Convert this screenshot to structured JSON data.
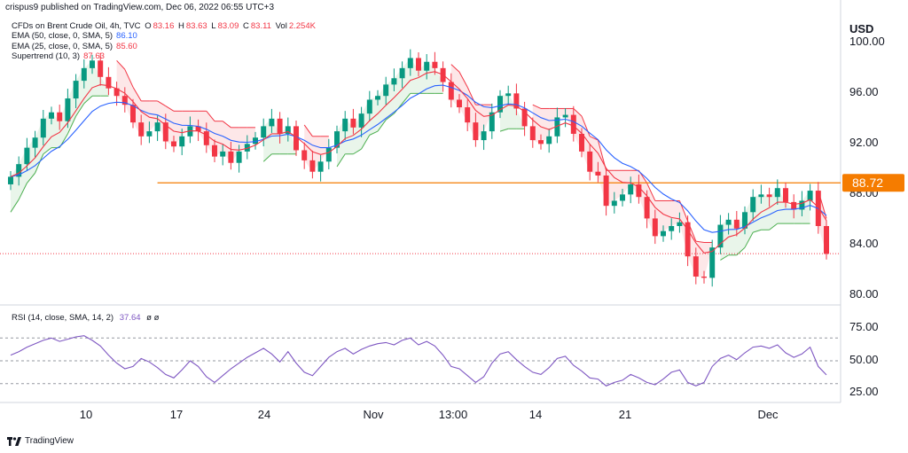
{
  "header": {
    "publisher": "crispus9 published on TradingView.com, Dec 06, 2022 06:55 UTC+3"
  },
  "legend": {
    "symbol": "CFDs on Brent Crude Oil, 4h, TVC",
    "ohlc": {
      "o_label": "O",
      "o": "83.16",
      "h_label": "H",
      "h": "83.63",
      "l_label": "L",
      "l": "83.09",
      "c_label": "C",
      "c": "83.11",
      "vol_label": "Vol",
      "vol": "2.254K"
    },
    "ema50_label": "EMA (50, close, 0, SMA, 5)",
    "ema50_value": "86.10",
    "ema25_label": "EMA (25, close, 0, SMA, 5)",
    "ema25_value": "85.60",
    "supertrend_label": "Supertrend (10, 3)",
    "supertrend_value": "87.63"
  },
  "rsi_legend": {
    "label": "RSI (14, close, SMA, 14, 2)",
    "value": "37.64",
    "extra": "ø ø"
  },
  "currency": "USD",
  "price_axis_labels": [
    "100.00",
    "96.00",
    "92.00",
    "88.00",
    "84.00",
    "80.00"
  ],
  "rsi_axis_labels": [
    "75.00",
    "50.00",
    "25.00"
  ],
  "time_axis_labels": [
    "10",
    "17",
    "24",
    "Nov",
    "13:00",
    "14",
    "21",
    "Dec"
  ],
  "price_badge": "88.72",
  "brand": "TradingView",
  "colors": {
    "up": "#089981",
    "down": "#f23645",
    "ema50": "#2962ff",
    "ema25": "#f23645",
    "supertrend_up": "#4caf50",
    "supertrend_down": "#f23645",
    "rsi": "#7e57c2",
    "level_line": "#f57c00",
    "badge": "#f57c00"
  },
  "chart_data": {
    "type": "candlestick",
    "symbol": "CFDs on Brent Crude Oil",
    "interval": "4h",
    "ylim": [
      80,
      100
    ],
    "time_ticks": [
      "10",
      "17",
      "24",
      "Nov",
      "13:00",
      "14",
      "21",
      "Dec"
    ],
    "series": [
      {
        "name": "Brent Crude Oil",
        "close": [
          89.2,
          90.2,
          91.5,
          92.3,
          93.8,
          94.3,
          93.6,
          95.4,
          96.8,
          97.8,
          98.4,
          97.1,
          96.2,
          95.6,
          94.9,
          93.5,
          92.4,
          92.8,
          93.5,
          92.0,
          91.6,
          92.4,
          93.2,
          92.8,
          91.7,
          90.8,
          91.2,
          90.3,
          91.2,
          91.8,
          92.3,
          93.2,
          93.8,
          92.6,
          93.2,
          91.3,
          90.5,
          89.6,
          90.4,
          91.5,
          92.8,
          93.8,
          93.1,
          94.2,
          95.3,
          95.6,
          96.5,
          97.0,
          97.8,
          98.6,
          97.6,
          98.3,
          97.8,
          96.7,
          95.3,
          94.7,
          93.5,
          92.1,
          92.8,
          94.3,
          95.6,
          95.8,
          94.6,
          93.2,
          92.1,
          91.8,
          92.4,
          93.9,
          94.1,
          92.6,
          91.2,
          89.6,
          89.3,
          86.9,
          87.3,
          87.8,
          88.6,
          87.6,
          85.9,
          84.5,
          84.9,
          85.3,
          85.6,
          82.9,
          81.3,
          81.2,
          83.6,
          85.4,
          85.8,
          85.1,
          86.4,
          87.6,
          87.8,
          87.6,
          88.3,
          87.2,
          86.6,
          87.3,
          88.1,
          85.3,
          83.1
        ]
      },
      {
        "name": "RSI",
        "ylim": [
          15,
          85
        ],
        "levels": [
          70,
          50,
          30
        ],
        "values": [
          55,
          58,
          62,
          65,
          68,
          70,
          67,
          69,
          71,
          72,
          68,
          63,
          55,
          48,
          43,
          45,
          52,
          49,
          44,
          38,
          35,
          42,
          50,
          45,
          36,
          31,
          37,
          43,
          48,
          53,
          57,
          61,
          56,
          49,
          58,
          48,
          40,
          37,
          45,
          53,
          58,
          61,
          56,
          60,
          63,
          65,
          66,
          64,
          68,
          70,
          64,
          67,
          63,
          55,
          45,
          43,
          37,
          31,
          36,
          48,
          56,
          58,
          51,
          45,
          40,
          38,
          44,
          52,
          54,
          46,
          41,
          35,
          34,
          28,
          31,
          33,
          38,
          35,
          31,
          29,
          34,
          40,
          42,
          31,
          28,
          31,
          45,
          52,
          55,
          51,
          57,
          62,
          63,
          61,
          64,
          57,
          53,
          56,
          62,
          45,
          37.64
        ]
      }
    ]
  }
}
